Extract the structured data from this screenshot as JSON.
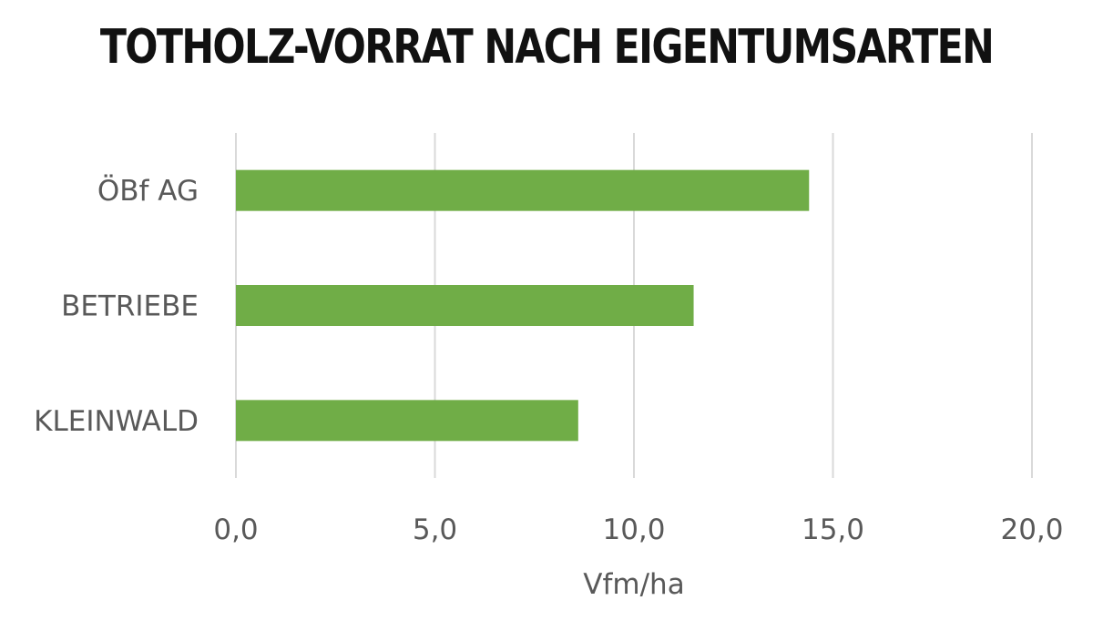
{
  "chart_data": {
    "type": "bar",
    "orientation": "horizontal",
    "title": "TOTHOLZ-VORRAT NACH EIGENTUMSARTEN",
    "categories": [
      "ÖBf AG",
      "BETRIEBE",
      "KLEINWALD"
    ],
    "values": [
      14.4,
      11.5,
      8.6
    ],
    "xlabel": "Vfm/ha",
    "ylabel": "",
    "xlim": [
      0,
      20
    ],
    "xticks": [
      0,
      5,
      10,
      15,
      20
    ],
    "xtick_labels": [
      "0,0",
      "5,0",
      "10,0",
      "15,0",
      "20,0"
    ],
    "grid": "vertical",
    "legend": "none",
    "bar_color": "#70ad47"
  }
}
